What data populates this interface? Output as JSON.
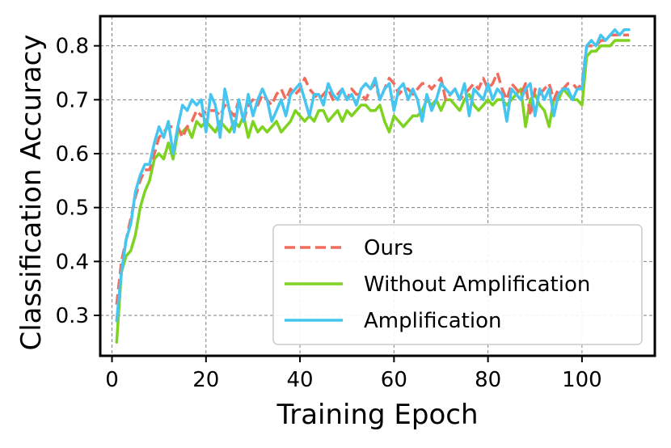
{
  "chart_data": {
    "type": "line",
    "xlabel": "Training Epoch",
    "ylabel": "Classification Accuracy",
    "xlim": [
      -2.5,
      115.5
    ],
    "ylim": [
      0.225,
      0.855
    ],
    "xticks": [
      0,
      20,
      40,
      60,
      80,
      100
    ],
    "yticks": [
      0.3,
      0.4,
      0.5,
      0.6,
      0.7,
      0.8
    ],
    "xtick_labels": [
      "0",
      "20",
      "40",
      "60",
      "80",
      "100"
    ],
    "ytick_labels": [
      "0.3",
      "0.4",
      "0.5",
      "0.6",
      "0.7",
      "0.8"
    ],
    "grid": true,
    "legend_position": "lower-right",
    "series": [
      {
        "name": "Ours",
        "color": "#f26c5e",
        "style": "dashed",
        "x": [
          1,
          2,
          3,
          4,
          5,
          6,
          7,
          8,
          9,
          10,
          11,
          12,
          13,
          14,
          15,
          16,
          17,
          18,
          19,
          20,
          21,
          22,
          23,
          24,
          25,
          26,
          27,
          28,
          29,
          30,
          31,
          32,
          33,
          34,
          35,
          36,
          37,
          38,
          39,
          40,
          41,
          42,
          43,
          44,
          45,
          46,
          47,
          48,
          49,
          50,
          51,
          52,
          53,
          54,
          55,
          56,
          57,
          58,
          59,
          60,
          61,
          62,
          63,
          64,
          65,
          66,
          67,
          68,
          69,
          70,
          71,
          72,
          73,
          74,
          75,
          76,
          77,
          78,
          79,
          80,
          81,
          82,
          83,
          84,
          85,
          86,
          87,
          88,
          89,
          90,
          91,
          92,
          93,
          94,
          95,
          96,
          97,
          98,
          99,
          100,
          101,
          102,
          103,
          104,
          105,
          106,
          107,
          108,
          109,
          110
        ],
        "y": [
          0.32,
          0.4,
          0.44,
          0.48,
          0.52,
          0.55,
          0.57,
          0.57,
          0.6,
          0.63,
          0.64,
          0.65,
          0.65,
          0.65,
          0.63,
          0.65,
          0.66,
          0.68,
          0.67,
          0.68,
          0.68,
          0.68,
          0.67,
          0.69,
          0.68,
          0.67,
          0.7,
          0.66,
          0.69,
          0.7,
          0.69,
          0.71,
          0.7,
          0.69,
          0.71,
          0.72,
          0.7,
          0.72,
          0.71,
          0.72,
          0.74,
          0.72,
          0.71,
          0.7,
          0.71,
          0.72,
          0.7,
          0.71,
          0.72,
          0.7,
          0.72,
          0.71,
          0.71,
          0.7,
          0.72,
          0.73,
          0.7,
          0.72,
          0.74,
          0.73,
          0.71,
          0.72,
          0.72,
          0.71,
          0.72,
          0.73,
          0.73,
          0.72,
          0.73,
          0.74,
          0.7,
          0.71,
          0.72,
          0.7,
          0.71,
          0.72,
          0.73,
          0.72,
          0.74,
          0.72,
          0.73,
          0.75,
          0.72,
          0.7,
          0.73,
          0.72,
          0.71,
          0.73,
          0.67,
          0.72,
          0.71,
          0.72,
          0.73,
          0.7,
          0.72,
          0.72,
          0.73,
          0.73,
          0.72,
          0.73,
          0.8,
          0.8,
          0.8,
          0.81,
          0.81,
          0.82,
          0.82,
          0.82,
          0.82,
          0.82
        ]
      },
      {
        "name": "Without Amplification",
        "color": "#7ed321",
        "style": "solid",
        "x": [
          1,
          2,
          3,
          4,
          5,
          6,
          7,
          8,
          9,
          10,
          11,
          12,
          13,
          14,
          15,
          16,
          17,
          18,
          19,
          20,
          21,
          22,
          23,
          24,
          25,
          26,
          27,
          28,
          29,
          30,
          31,
          32,
          33,
          34,
          35,
          36,
          37,
          38,
          39,
          40,
          41,
          42,
          43,
          44,
          45,
          46,
          47,
          48,
          49,
          50,
          51,
          52,
          53,
          54,
          55,
          56,
          57,
          58,
          59,
          60,
          61,
          62,
          63,
          64,
          65,
          66,
          67,
          68,
          69,
          70,
          71,
          72,
          73,
          74,
          75,
          76,
          77,
          78,
          79,
          80,
          81,
          82,
          83,
          84,
          85,
          86,
          87,
          88,
          89,
          90,
          91,
          92,
          93,
          94,
          95,
          96,
          97,
          98,
          99,
          100,
          101,
          102,
          103,
          104,
          105,
          106,
          107,
          108,
          109,
          110
        ],
        "y": [
          0.25,
          0.38,
          0.41,
          0.42,
          0.45,
          0.5,
          0.53,
          0.55,
          0.59,
          0.6,
          0.59,
          0.62,
          0.59,
          0.64,
          0.64,
          0.65,
          0.63,
          0.66,
          0.65,
          0.66,
          0.65,
          0.64,
          0.66,
          0.65,
          0.64,
          0.66,
          0.65,
          0.67,
          0.63,
          0.66,
          0.64,
          0.65,
          0.64,
          0.65,
          0.66,
          0.64,
          0.65,
          0.66,
          0.68,
          0.67,
          0.66,
          0.67,
          0.66,
          0.68,
          0.68,
          0.66,
          0.67,
          0.68,
          0.66,
          0.68,
          0.67,
          0.68,
          0.69,
          0.69,
          0.68,
          0.68,
          0.69,
          0.66,
          0.64,
          0.67,
          0.66,
          0.65,
          0.66,
          0.67,
          0.67,
          0.68,
          0.7,
          0.69,
          0.7,
          0.68,
          0.7,
          0.7,
          0.69,
          0.68,
          0.7,
          0.71,
          0.69,
          0.68,
          0.69,
          0.7,
          0.69,
          0.7,
          0.7,
          0.69,
          0.7,
          0.71,
          0.72,
          0.65,
          0.7,
          0.71,
          0.69,
          0.68,
          0.65,
          0.7,
          0.7,
          0.72,
          0.71,
          0.7,
          0.7,
          0.69,
          0.78,
          0.79,
          0.79,
          0.8,
          0.8,
          0.8,
          0.81,
          0.81,
          0.81,
          0.81
        ]
      },
      {
        "name": "Amplification",
        "color": "#45c5f0",
        "style": "solid",
        "x": [
          1,
          2,
          3,
          4,
          5,
          6,
          7,
          8,
          9,
          10,
          11,
          12,
          13,
          14,
          15,
          16,
          17,
          18,
          19,
          20,
          21,
          22,
          23,
          24,
          25,
          26,
          27,
          28,
          29,
          30,
          31,
          32,
          33,
          34,
          35,
          36,
          37,
          38,
          39,
          40,
          41,
          42,
          43,
          44,
          45,
          46,
          47,
          48,
          49,
          50,
          51,
          52,
          53,
          54,
          55,
          56,
          57,
          58,
          59,
          60,
          61,
          62,
          63,
          64,
          65,
          66,
          67,
          68,
          69,
          70,
          71,
          72,
          73,
          74,
          75,
          76,
          77,
          78,
          79,
          80,
          81,
          82,
          83,
          84,
          85,
          86,
          87,
          88,
          89,
          90,
          91,
          92,
          93,
          94,
          95,
          96,
          97,
          98,
          99,
          100,
          101,
          102,
          103,
          104,
          105,
          106,
          107,
          108,
          109,
          110
        ],
        "y": [
          0.29,
          0.38,
          0.44,
          0.47,
          0.53,
          0.56,
          0.58,
          0.58,
          0.62,
          0.65,
          0.63,
          0.66,
          0.6,
          0.65,
          0.69,
          0.68,
          0.7,
          0.69,
          0.7,
          0.64,
          0.71,
          0.69,
          0.63,
          0.72,
          0.68,
          0.64,
          0.7,
          0.66,
          0.71,
          0.67,
          0.7,
          0.72,
          0.7,
          0.66,
          0.68,
          0.7,
          0.67,
          0.71,
          0.72,
          0.73,
          0.7,
          0.67,
          0.71,
          0.71,
          0.69,
          0.73,
          0.71,
          0.7,
          0.72,
          0.7,
          0.71,
          0.69,
          0.72,
          0.73,
          0.72,
          0.74,
          0.7,
          0.72,
          0.73,
          0.68,
          0.72,
          0.73,
          0.7,
          0.72,
          0.7,
          0.66,
          0.71,
          0.68,
          0.7,
          0.73,
          0.72,
          0.71,
          0.72,
          0.7,
          0.73,
          0.67,
          0.72,
          0.71,
          0.7,
          0.73,
          0.7,
          0.72,
          0.71,
          0.66,
          0.72,
          0.71,
          0.7,
          0.72,
          0.73,
          0.67,
          0.72,
          0.7,
          0.72,
          0.67,
          0.71,
          0.72,
          0.72,
          0.7,
          0.72,
          0.72,
          0.8,
          0.81,
          0.8,
          0.82,
          0.81,
          0.82,
          0.83,
          0.82,
          0.83,
          0.83
        ]
      }
    ]
  }
}
